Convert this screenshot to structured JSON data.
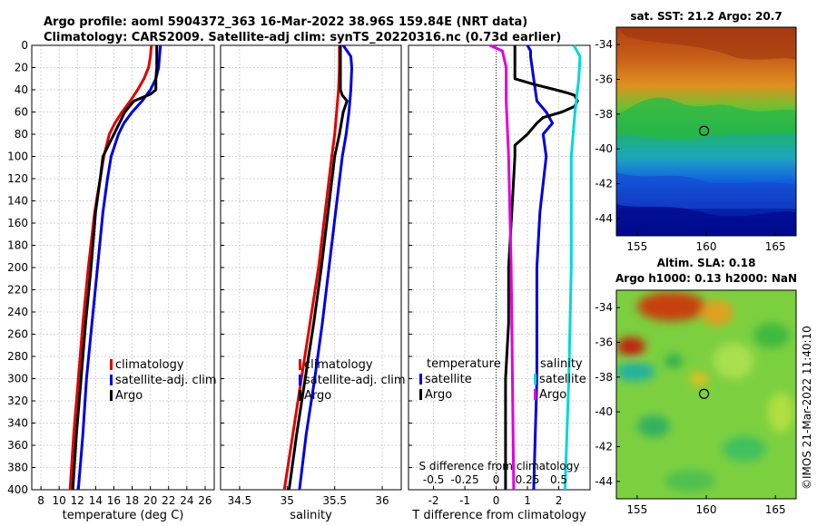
{
  "header": {
    "line1": "Argo profile: aoml 5904372_363 16-Mar-2022 38.96S 159.84E (NRT data)",
    "line2": "Climatology: CARS2009. Satellite-adj clim: synTS_20220316.nc (0.73d earlier)"
  },
  "colors": {
    "climatology": "#e00000",
    "satellite": "#0000e0",
    "argo": "#000000",
    "salinity_satellite": "#00d8d8",
    "salinity_diff": "#e000e0",
    "grid": "#c8c8c8"
  },
  "watermark": "©IMOS 21-Mar-2022 11:40:10",
  "chart_data": [
    {
      "type": "line",
      "id": "temperature",
      "xlabel": "temperature (deg C)",
      "ylabel": "",
      "xlim": [
        7,
        27
      ],
      "ylim": [
        0,
        400
      ],
      "y_inverted": true,
      "grid": true,
      "xticks": [
        8,
        10,
        12,
        14,
        16,
        18,
        20,
        22,
        24,
        26
      ],
      "yticks": [
        0,
        20,
        40,
        60,
        80,
        100,
        120,
        140,
        160,
        180,
        200,
        220,
        240,
        260,
        280,
        300,
        320,
        340,
        360,
        380,
        400
      ],
      "legend": {
        "position": "lower-right",
        "entries": [
          "climatology",
          "satellite-adj. clim",
          "Argo"
        ]
      },
      "series": [
        {
          "name": "climatology",
          "color_key": "climatology",
          "depth": [
            0,
            10,
            20,
            30,
            40,
            50,
            60,
            70,
            80,
            100,
            120,
            150,
            200,
            250,
            300,
            350,
            400
          ],
          "values": [
            20.1,
            20.0,
            19.8,
            19.3,
            18.6,
            17.8,
            16.9,
            16.1,
            15.5,
            14.9,
            14.5,
            13.9,
            13.2,
            12.6,
            12.1,
            11.6,
            11.2
          ]
        },
        {
          "name": "satellite-adj. clim",
          "color_key": "satellite",
          "depth": [
            0,
            10,
            20,
            30,
            40,
            50,
            60,
            70,
            80,
            100,
            120,
            150,
            200,
            250,
            300,
            350,
            400
          ],
          "values": [
            21.1,
            21.0,
            20.9,
            20.6,
            20.0,
            19.1,
            18.0,
            17.1,
            16.5,
            15.7,
            15.3,
            14.8,
            14.2,
            13.6,
            13.0,
            12.6,
            12.1
          ]
        },
        {
          "name": "Argo",
          "color_key": "argo",
          "depth": [
            0,
            10,
            20,
            30,
            40,
            44,
            50,
            60,
            70,
            80,
            90,
            100,
            120,
            150,
            200,
            250,
            300,
            350,
            400
          ],
          "values": [
            20.7,
            20.7,
            20.7,
            20.6,
            20.6,
            20.0,
            18.2,
            17.2,
            16.6,
            16.0,
            15.4,
            14.8,
            14.5,
            14.0,
            13.5,
            12.9,
            12.4,
            11.9,
            11.5
          ]
        }
      ]
    },
    {
      "type": "line",
      "id": "salinity",
      "xlabel": "salinity",
      "ylabel": "",
      "xlim": [
        34.3,
        36.2
      ],
      "ylim": [
        0,
        400
      ],
      "y_inverted": true,
      "grid": true,
      "xticks": [
        34.5,
        35,
        35.5,
        36
      ],
      "xtick_labels": [
        "34.5",
        "35",
        "35.5",
        "36"
      ],
      "legend": {
        "position": "lower-right",
        "entries": [
          "climatology",
          "satellite-adj. clim",
          "Argo"
        ]
      },
      "series": [
        {
          "name": "climatology",
          "color_key": "climatology",
          "depth": [
            0,
            20,
            40,
            60,
            80,
            100,
            150,
            200,
            250,
            300,
            350,
            400
          ],
          "values": [
            35.55,
            35.55,
            35.54,
            35.52,
            35.5,
            35.47,
            35.4,
            35.33,
            35.24,
            35.15,
            35.06,
            34.97
          ]
        },
        {
          "name": "satellite-adj. clim",
          "color_key": "satellite",
          "depth": [
            0,
            5,
            10,
            20,
            40,
            60,
            80,
            100,
            150,
            200,
            250,
            300,
            350,
            400
          ],
          "values": [
            35.59,
            35.63,
            35.67,
            35.68,
            35.67,
            35.65,
            35.62,
            35.58,
            35.51,
            35.44,
            35.37,
            35.29,
            35.2,
            35.13
          ]
        },
        {
          "name": "Argo",
          "color_key": "argo",
          "depth": [
            0,
            20,
            40,
            45,
            50,
            55,
            60,
            80,
            100,
            150,
            200,
            250,
            300,
            350,
            400
          ],
          "values": [
            35.56,
            35.56,
            35.56,
            35.58,
            35.63,
            35.61,
            35.59,
            35.55,
            35.5,
            35.43,
            35.36,
            35.28,
            35.19,
            35.1,
            35.02
          ]
        }
      ]
    },
    {
      "type": "line",
      "id": "differences",
      "xlabel": "T difference from climatology",
      "secondary_xlabel": "S difference from climatology",
      "xlim": [
        -2.8,
        3.0
      ],
      "ylim": [
        0,
        400
      ],
      "y_inverted": true,
      "grid": true,
      "xticks": [
        -2,
        -1,
        0,
        1,
        2
      ],
      "xtick_labels": [
        "-2",
        "-1",
        "0",
        "1",
        "2"
      ],
      "secondary_xticks": [
        -0.5,
        -0.25,
        0,
        0.25,
        0.5
      ],
      "secondary_xtick_labels": [
        "-0.5",
        "-0.25",
        "0",
        "0.25",
        "0.5"
      ],
      "legend_temperature": {
        "title": "temperature",
        "entries": [
          "satellite",
          "Argo"
        ]
      },
      "legend_salinity": {
        "title": "salinity",
        "entries": [
          "satellite",
          "Argo"
        ]
      },
      "series": [
        {
          "name": "temperature satellite",
          "color_key": "satellite",
          "depth": [
            0,
            5,
            10,
            30,
            50,
            60,
            70,
            80,
            100,
            150,
            200,
            300,
            400
          ],
          "values": [
            1.0,
            1.1,
            1.1,
            1.2,
            1.3,
            1.6,
            1.8,
            1.5,
            1.6,
            1.4,
            1.3,
            1.3,
            1.2
          ]
        },
        {
          "name": "temperature Argo",
          "color_key": "argo",
          "depth": [
            0,
            20,
            30,
            35,
            40,
            43,
            45,
            50,
            55,
            60,
            65,
            70,
            80,
            90,
            100,
            150,
            200,
            250,
            300,
            350,
            400
          ],
          "values": [
            0.6,
            0.6,
            0.6,
            1.2,
            1.9,
            2.3,
            2.5,
            2.6,
            2.5,
            2.1,
            1.5,
            1.3,
            1.0,
            0.6,
            0.6,
            0.5,
            0.4,
            0.4,
            0.3,
            0.3,
            0.3
          ]
        },
        {
          "name": "salinity satellite",
          "color_key": "salinity_satellite",
          "depth": [
            0,
            10,
            30,
            60,
            100,
            200,
            300,
            400
          ],
          "values": [
            0.62,
            0.67,
            0.66,
            0.63,
            0.6,
            0.6,
            0.58,
            0.55
          ]
        },
        {
          "name": "salinity Argo",
          "color_key": "salinity_diff",
          "depth": [
            0,
            5,
            20,
            50,
            100,
            200,
            300,
            400
          ],
          "values": [
            -0.05,
            0.05,
            0.08,
            0.08,
            0.1,
            0.12,
            0.13,
            0.14
          ]
        }
      ]
    },
    {
      "type": "heatmap",
      "id": "sst_map",
      "title": "sat. SST: 21.2 Argo: 20.7",
      "xlim": [
        153.5,
        166.5
      ],
      "ylim": [
        -45,
        -33
      ],
      "xticks": [
        155,
        160,
        165
      ],
      "yticks": [
        -34,
        -36,
        -38,
        -40,
        -42,
        -44
      ],
      "marker": {
        "lon": 159.84,
        "lat": -38.96
      }
    },
    {
      "type": "heatmap",
      "id": "sla_map",
      "title_line1": "Altim. SLA: 0.18",
      "title_line2": "Argo h1000: 0.13 h2000: NaN",
      "xlim": [
        153.5,
        166.5
      ],
      "ylim": [
        -45,
        -33
      ],
      "xticks": [
        155,
        160,
        165
      ],
      "yticks": [
        -34,
        -36,
        -38,
        -40,
        -42,
        -44
      ],
      "marker": {
        "lon": 159.84,
        "lat": -38.96
      }
    }
  ]
}
